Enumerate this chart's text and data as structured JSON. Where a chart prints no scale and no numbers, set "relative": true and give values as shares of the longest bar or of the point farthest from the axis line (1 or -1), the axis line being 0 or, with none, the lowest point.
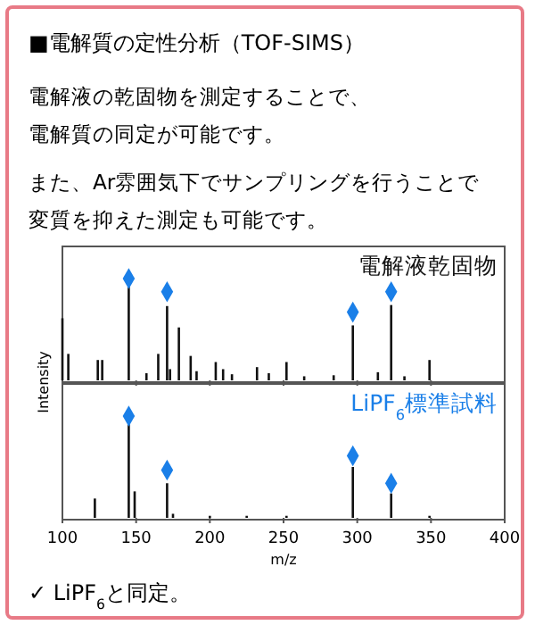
{
  "chart_data": [
    {
      "type": "bar",
      "title": "■電解質の定性分析（TOF-SIMS）",
      "annotations": [
        "電解液の乾固物を測定することで、",
        "電解質の同定が可能です。",
        "また、Ar雰囲気下でサンプリングを行うことで",
        "変質を抑えた測定も可能です。"
      ],
      "ylabel": "Intensity",
      "relative": true,
      "xlim": [
        100,
        400
      ],
      "xticks": [
        100,
        150,
        200,
        250,
        300,
        350,
        400
      ],
      "tick_labels": false,
      "series": [
        {
          "name": "電解液乾固物",
          "color": "#111111",
          "x": [
            100,
            104,
            124,
            127,
            145,
            157,
            165,
            171,
            173,
            179,
            187,
            191,
            204,
            209,
            215,
            232,
            240,
            252,
            264,
            284,
            297,
            314,
            323,
            332,
            349
          ],
          "values": [
            0.61,
            0.26,
            0.2,
            0.2,
            0.93,
            0.07,
            0.26,
            0.73,
            0.11,
            0.52,
            0.24,
            0.09,
            0.18,
            0.11,
            0.06,
            0.13,
            0.07,
            0.18,
            0.04,
            0.05,
            0.54,
            0.08,
            0.74,
            0.04,
            0.2
          ]
        },
        {
          "type": "scatter",
          "marker": "diamond",
          "color": "#1a7fe8",
          "x": [
            145,
            171,
            297,
            323
          ],
          "values": [
            1,
            0.87,
            0.67,
            0.87
          ]
        }
      ]
    },
    {
      "type": "bar",
      "xlabel": "m/z",
      "annotations": [
        "✓  LiPF$_{6}$と同定。"
      ],
      "relative": true,
      "xlim": [
        100,
        400
      ],
      "xticks": [
        100,
        150,
        200,
        250,
        300,
        350,
        400
      ],
      "series": [
        {
          "color": "#111111",
          "x": [
            122,
            145,
            149,
            171,
            175,
            200,
            225,
            252,
            297,
            323,
            349
          ],
          "values": [
            0.19,
            0.92,
            0.26,
            0.34,
            0.04,
            0.02,
            0.02,
            0.02,
            0.5,
            0.24,
            0.02
          ]
        },
        {
          "type": "scatter",
          "name": "LiPF$_{6}$標準試料",
          "marker": "diamond",
          "color": "#1a7fe8",
          "x": [
            145,
            171,
            297,
            323
          ],
          "values": [
            1,
            0.47,
            0.61,
            0.34
          ]
        }
      ]
    }
  ]
}
